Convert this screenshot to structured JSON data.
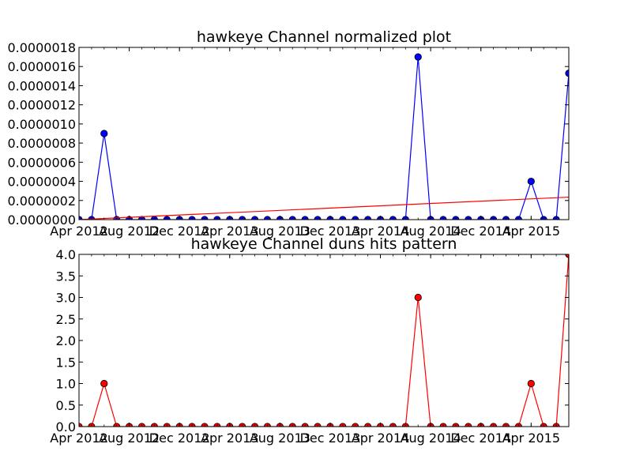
{
  "chart_data": [
    {
      "type": "line",
      "title": "hawkeye Channel normalized plot",
      "x": [
        "2012-04",
        "2012-05",
        "2012-06",
        "2012-07",
        "2012-08",
        "2012-09",
        "2012-10",
        "2012-11",
        "2012-12",
        "2013-01",
        "2013-02",
        "2013-03",
        "2013-04",
        "2013-05",
        "2013-06",
        "2013-07",
        "2013-08",
        "2013-09",
        "2013-10",
        "2013-11",
        "2013-12",
        "2014-01",
        "2014-02",
        "2014-03",
        "2014-04",
        "2014-05",
        "2014-06",
        "2014-07",
        "2014-08",
        "2014-09",
        "2014-10",
        "2014-11",
        "2014-12",
        "2015-01",
        "2015-02",
        "2015-03",
        "2015-04",
        "2015-05",
        "2015-06",
        "2015-07"
      ],
      "x_tick_labels": [
        {
          "x": "2012-04",
          "label": "Apr 2012"
        },
        {
          "x": "2012-08",
          "label": "Aug 2012"
        },
        {
          "x": "2012-12",
          "label": "Dec 2012"
        },
        {
          "x": "2013-04",
          "label": "Apr 2013"
        },
        {
          "x": "2013-08",
          "label": "Aug 2013"
        },
        {
          "x": "2013-12",
          "label": "Dec 2013"
        },
        {
          "x": "2014-04",
          "label": "Apr 2014"
        },
        {
          "x": "2014-08",
          "label": "Aug 2014"
        },
        {
          "x": "2014-12",
          "label": "Dec 2014"
        },
        {
          "x": "2015-04",
          "label": "Apr 2015"
        }
      ],
      "y_ticks": [
        "0.0000000",
        "0.0000002",
        "0.0000004",
        "0.0000006",
        "0.0000008",
        "0.0000010",
        "0.0000012",
        "0.0000014",
        "0.0000016",
        "0.0000018"
      ],
      "ylim": [
        0,
        1.8e-06
      ],
      "grid": false,
      "series": [
        {
          "style": "line-markers",
          "color": "#0000ff",
          "values": [
            0,
            0,
            9e-07,
            0,
            0,
            0,
            0,
            0,
            0,
            0,
            0,
            0,
            0,
            0,
            0,
            0,
            0,
            0,
            0,
            0,
            0,
            0,
            0,
            0,
            0,
            0,
            0,
            1.7e-06,
            0,
            0,
            0,
            0,
            0,
            0,
            0,
            0,
            4e-07,
            0,
            0,
            1.53e-06
          ]
        },
        {
          "style": "trend-line",
          "color": "#ff0000",
          "start": 0,
          "end": 2.35e-07
        }
      ]
    },
    {
      "type": "line",
      "title": "hawkeye Channel duns hits pattern",
      "x_tick_labels": [
        {
          "x": "2012-04",
          "label": "Apr 2012"
        },
        {
          "x": "2012-08",
          "label": "Aug 2012"
        },
        {
          "x": "2012-12",
          "label": "Dec 2012"
        },
        {
          "x": "2013-04",
          "label": "Apr 2013"
        },
        {
          "x": "2013-08",
          "label": "Aug 2013"
        },
        {
          "x": "2013-12",
          "label": "Dec 2013"
        },
        {
          "x": "2014-04",
          "label": "Apr 2014"
        },
        {
          "x": "2014-08",
          "label": "Aug 2014"
        },
        {
          "x": "2014-12",
          "label": "Dec 2014"
        },
        {
          "x": "2015-04",
          "label": "Apr 2015"
        }
      ],
      "y_ticks": [
        "0.0",
        "0.5",
        "1.0",
        "1.5",
        "2.0",
        "2.5",
        "3.0",
        "3.5",
        "4.0"
      ],
      "ylim": [
        0,
        4
      ],
      "grid": false,
      "series": [
        {
          "style": "line-markers",
          "color": "#ff0000",
          "values": [
            0,
            0,
            1,
            0,
            0,
            0,
            0,
            0,
            0,
            0,
            0,
            0,
            0,
            0,
            0,
            0,
            0,
            0,
            0,
            0,
            0,
            0,
            0,
            0,
            0,
            0,
            0,
            3,
            0,
            0,
            0,
            0,
            0,
            0,
            0,
            0,
            1,
            0,
            0,
            4
          ]
        }
      ]
    }
  ]
}
